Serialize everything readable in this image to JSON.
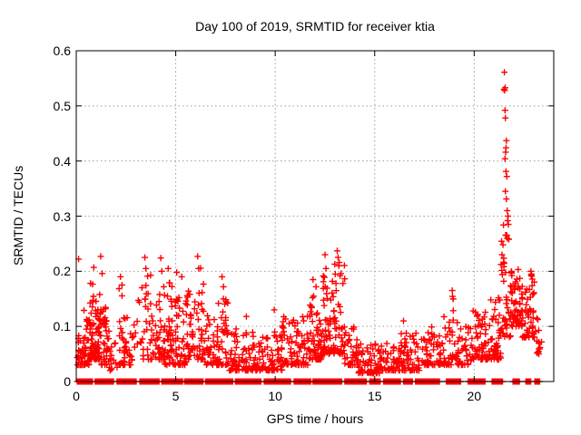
{
  "chart_data": {
    "type": "scatter",
    "title": "Day 100 of 2019, SRMTID for receiver ktia",
    "xlabel": "GPS time / hours",
    "ylabel": "SRMTID / TECUs",
    "xlim": [
      0,
      24
    ],
    "ylim": [
      0,
      0.6
    ],
    "xticks": [
      0,
      5,
      10,
      15,
      20
    ],
    "xtick_labels": [
      "0",
      "5",
      "10",
      "15",
      "20"
    ],
    "yticks": [
      0,
      0.1,
      0.2,
      0.3,
      0.4,
      0.5,
      0.6
    ],
    "ytick_labels": [
      "0",
      "0.1",
      "0.2",
      "0.3",
      "0.4",
      "0.5",
      "0.6"
    ],
    "grid": true,
    "legend": "none",
    "marker": {
      "shape": "plus",
      "size": 7,
      "stroke_width": 1.4
    },
    "marker_color": "#ff0000",
    "grid_color": "#9e9e9e",
    "frame_color": "#000000",
    "background_color": "#ffffff",
    "seed": 42,
    "skew": 2.2,
    "zero_point_spacing": 0.04,
    "zero_runs": [
      [
        0.05,
        0.85
      ],
      [
        0.95,
        1.9
      ],
      [
        2.05,
        3.05
      ],
      [
        3.2,
        4.2
      ],
      [
        4.3,
        5.35
      ],
      [
        5.45,
        6.4
      ],
      [
        6.5,
        7.9
      ],
      [
        8.0,
        9.3
      ],
      [
        9.45,
        10.8
      ],
      [
        10.95,
        11.8
      ],
      [
        11.9,
        13.35
      ],
      [
        13.5,
        14.6
      ],
      [
        14.75,
        15.3
      ],
      [
        15.45,
        16.3
      ],
      [
        16.45,
        16.9
      ],
      [
        17.05,
        18.25
      ],
      [
        18.6,
        19.35
      ],
      [
        19.7,
        20.55
      ],
      [
        20.9,
        21.45
      ],
      [
        21.95,
        22.3
      ],
      [
        22.6,
        22.85
      ],
      [
        23.05,
        23.3
      ]
    ],
    "scatter_bands": [
      [
        0.05,
        0.35,
        0.03,
        0.1,
        22
      ],
      [
        0.35,
        0.65,
        0.03,
        0.13,
        28
      ],
      [
        0.65,
        0.95,
        0.04,
        0.18,
        45
      ],
      [
        0.95,
        1.25,
        0.04,
        0.16,
        45
      ],
      [
        1.25,
        1.65,
        0.03,
        0.14,
        38
      ],
      [
        1.65,
        2.1,
        0.02,
        0.08,
        14
      ],
      [
        2.1,
        2.5,
        0.03,
        0.17,
        30
      ],
      [
        2.5,
        2.85,
        0.03,
        0.12,
        18
      ],
      [
        2.85,
        3.3,
        0.05,
        0.16,
        10
      ],
      [
        3.3,
        3.75,
        0.04,
        0.2,
        26
      ],
      [
        3.75,
        4.45,
        0.04,
        0.19,
        48
      ],
      [
        4.45,
        5.05,
        0.03,
        0.18,
        52
      ],
      [
        5.05,
        5.55,
        0.03,
        0.16,
        40
      ],
      [
        5.55,
        6.0,
        0.04,
        0.17,
        30
      ],
      [
        6.0,
        6.45,
        0.04,
        0.21,
        30
      ],
      [
        6.45,
        6.95,
        0.03,
        0.12,
        30
      ],
      [
        6.95,
        7.65,
        0.03,
        0.15,
        52
      ],
      [
        7.65,
        8.45,
        0.02,
        0.1,
        42
      ],
      [
        8.45,
        9.45,
        0.02,
        0.09,
        58
      ],
      [
        9.45,
        10.35,
        0.02,
        0.09,
        55
      ],
      [
        10.35,
        11.05,
        0.03,
        0.12,
        45
      ],
      [
        11.05,
        11.65,
        0.03,
        0.12,
        40
      ],
      [
        11.65,
        12.35,
        0.04,
        0.17,
        58
      ],
      [
        12.35,
        12.95,
        0.05,
        0.2,
        55
      ],
      [
        12.95,
        13.5,
        0.05,
        0.22,
        45
      ],
      [
        13.5,
        14.15,
        0.03,
        0.1,
        40
      ],
      [
        14.15,
        15.25,
        0.015,
        0.07,
        62
      ],
      [
        15.25,
        16.25,
        0.02,
        0.07,
        55
      ],
      [
        16.25,
        17.35,
        0.02,
        0.09,
        62
      ],
      [
        17.35,
        18.25,
        0.03,
        0.1,
        50
      ],
      [
        18.25,
        18.85,
        0.03,
        0.12,
        34
      ],
      [
        18.85,
        19.15,
        0.04,
        0.16,
        18
      ],
      [
        19.15,
        19.85,
        0.03,
        0.1,
        36
      ],
      [
        19.85,
        20.75,
        0.04,
        0.13,
        60
      ],
      [
        20.75,
        21.35,
        0.04,
        0.16,
        50
      ],
      [
        21.35,
        21.85,
        0.08,
        0.3,
        40
      ],
      [
        21.85,
        22.4,
        0.1,
        0.22,
        55
      ],
      [
        22.4,
        22.8,
        0.08,
        0.18,
        32
      ],
      [
        22.8,
        23.1,
        0.08,
        0.2,
        22
      ],
      [
        23.1,
        23.4,
        0.05,
        0.12,
        14
      ]
    ],
    "notable_points": [
      [
        0.12,
        0.222
      ],
      [
        0.88,
        0.207
      ],
      [
        1.23,
        0.227
      ],
      [
        1.3,
        0.196
      ],
      [
        2.22,
        0.19
      ],
      [
        2.3,
        0.175
      ],
      [
        3.45,
        0.225
      ],
      [
        3.5,
        0.205
      ],
      [
        4.25,
        0.224
      ],
      [
        4.3,
        0.2
      ],
      [
        4.62,
        0.205
      ],
      [
        5.05,
        0.198
      ],
      [
        5.3,
        0.19
      ],
      [
        6.1,
        0.227
      ],
      [
        6.15,
        0.205
      ],
      [
        7.33,
        0.19
      ],
      [
        7.4,
        0.172
      ],
      [
        8.55,
        0.118
      ],
      [
        9.95,
        0.13
      ],
      [
        11.9,
        0.185
      ],
      [
        12.05,
        0.172
      ],
      [
        12.5,
        0.23
      ],
      [
        12.55,
        0.205
      ],
      [
        13.12,
        0.237
      ],
      [
        13.16,
        0.225
      ],
      [
        13.2,
        0.21
      ],
      [
        13.26,
        0.192
      ],
      [
        16.45,
        0.11
      ],
      [
        18.9,
        0.165
      ],
      [
        18.94,
        0.15
      ],
      [
        19.95,
        0.128
      ],
      [
        21.52,
        0.561
      ],
      [
        21.5,
        0.53
      ],
      [
        21.53,
        0.528
      ],
      [
        21.56,
        0.533
      ],
      [
        21.55,
        0.492
      ],
      [
        21.57,
        0.478
      ],
      [
        21.62,
        0.437
      ],
      [
        21.6,
        0.424
      ],
      [
        21.58,
        0.416
      ],
      [
        21.55,
        0.404
      ],
      [
        21.6,
        0.381
      ],
      [
        21.64,
        0.372
      ],
      [
        21.57,
        0.345
      ],
      [
        21.62,
        0.331
      ],
      [
        21.66,
        0.31
      ],
      [
        21.7,
        0.3
      ],
      [
        21.68,
        0.292
      ],
      [
        21.72,
        0.285
      ],
      [
        21.64,
        0.265
      ],
      [
        21.74,
        0.258
      ],
      [
        21.45,
        0.248
      ],
      [
        21.4,
        0.23
      ],
      [
        21.35,
        0.212
      ],
      [
        22.3,
        0.168
      ],
      [
        22.42,
        0.152
      ],
      [
        22.85,
        0.2
      ],
      [
        22.88,
        0.195
      ],
      [
        22.92,
        0.186
      ],
      [
        23.0,
        0.16
      ]
    ]
  }
}
